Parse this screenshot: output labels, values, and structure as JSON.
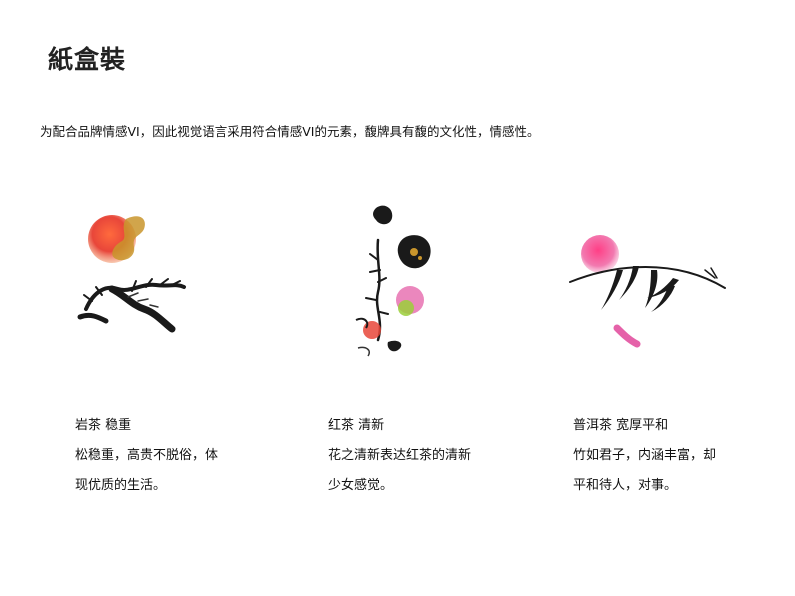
{
  "title": "紙盒裝",
  "intro": "为配合品牌情感VI，因此视觉语言采用符合情感VI的元素，馥牌具有馥的文化性，情感性。",
  "items": [
    {
      "art": "pine-and-sun-ink-painting",
      "heading": "岩茶 稳重",
      "lines": [
        "松稳重，高贵不脱俗，体",
        "现优质的生活。"
      ]
    },
    {
      "art": "flower-branch-ink-painting",
      "heading": "红茶 清新",
      "lines": [
        "花之清新表达红茶的清新",
        "少女感觉。"
      ]
    },
    {
      "art": "bamboo-and-pink-sun-ink-painting",
      "heading": "普洱茶 宽厚平和",
      "lines": [
        "竹如君子，内涵丰富，却",
        "平和待人，对事。"
      ]
    }
  ],
  "colors": {
    "ink": "#1a1a1a",
    "sun_red": "#e8463a",
    "gold": "#c9952c",
    "magenta": "#e0469a",
    "lime": "#9bcf3a"
  }
}
